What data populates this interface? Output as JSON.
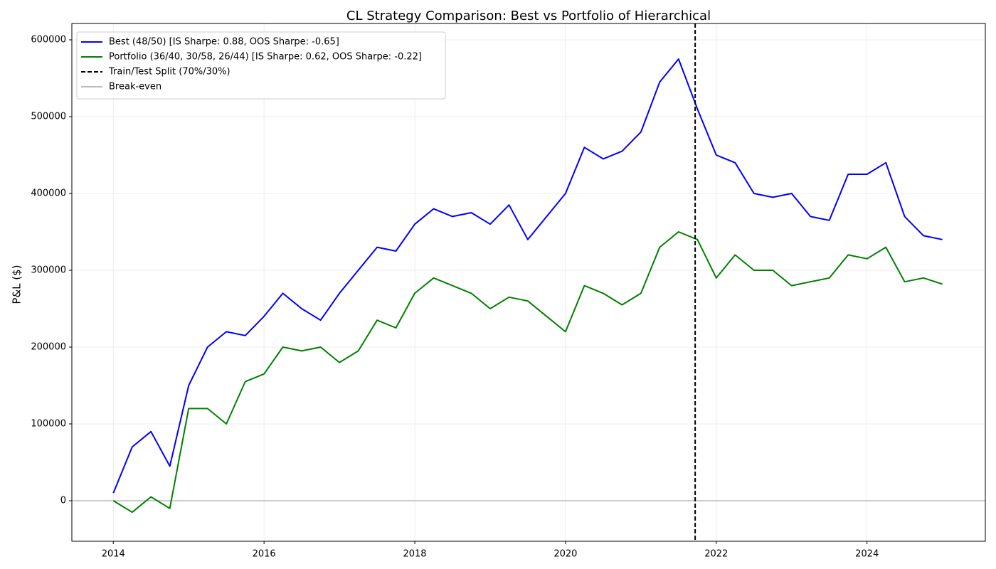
{
  "chart_data": {
    "type": "line",
    "title": "CL Strategy Comparison: Best vs Portfolio of Hierarchical",
    "y_label": "P&L ($)",
    "x": [
      2014.0,
      2014.25,
      2014.5,
      2014.75,
      2015.0,
      2015.25,
      2015.5,
      2015.75,
      2016.0,
      2016.25,
      2016.5,
      2016.75,
      2017.0,
      2017.25,
      2017.5,
      2017.75,
      2018.0,
      2018.25,
      2018.5,
      2018.75,
      2019.0,
      2019.25,
      2019.5,
      2019.75,
      2020.0,
      2020.25,
      2020.5,
      2020.75,
      2021.0,
      2021.25,
      2021.5,
      2021.75,
      2022.0,
      2022.25,
      2022.5,
      2022.75,
      2023.0,
      2023.25,
      2023.5,
      2023.75,
      2024.0,
      2024.25,
      2024.5,
      2024.75,
      2025.0
    ],
    "series": [
      {
        "name": "Best (48/50) [IS Sharpe: 0.88, OOS Sharpe: -0.65]",
        "color": "#0000ff",
        "values": [
          10000,
          70000,
          90000,
          45000,
          150000,
          200000,
          220000,
          215000,
          240000,
          270000,
          250000,
          235000,
          270000,
          300000,
          330000,
          325000,
          360000,
          380000,
          370000,
          375000,
          360000,
          385000,
          340000,
          370000,
          400000,
          460000,
          445000,
          455000,
          480000,
          545000,
          575000,
          510000,
          450000,
          440000,
          400000,
          395000,
          400000,
          370000,
          365000,
          425000,
          425000,
          440000,
          370000,
          345000,
          340000
        ]
      },
      {
        "name": "Portfolio (36/40, 30/58, 26/44) [IS Sharpe: 0.62, OOS Sharpe: -0.22]",
        "color": "#008000",
        "values": [
          0,
          -15000,
          5000,
          -10000,
          120000,
          120000,
          100000,
          155000,
          165000,
          200000,
          195000,
          200000,
          180000,
          195000,
          235000,
          225000,
          270000,
          290000,
          280000,
          270000,
          250000,
          265000,
          260000,
          240000,
          220000,
          280000,
          270000,
          255000,
          270000,
          330000,
          350000,
          340000,
          290000,
          320000,
          300000,
          300000,
          280000,
          285000,
          290000,
          320000,
          315000,
          330000,
          285000,
          290000,
          282000
        ]
      }
    ],
    "vlines": [
      {
        "name": "Train/Test Split (70%/30%)",
        "x": 2021.72,
        "color": "#000000"
      }
    ],
    "hlines": [
      {
        "name": "Break-even",
        "y": 0,
        "color": "#bbbbbb"
      }
    ],
    "xlim": [
      2013.45,
      2025.57
    ],
    "ylim": [
      -52800,
      621300
    ],
    "xticks": [
      2014,
      2016,
      2018,
      2020,
      2022,
      2024
    ],
    "yticks": [
      0,
      100000,
      200000,
      300000,
      400000,
      500000,
      600000
    ],
    "grid": true,
    "legend": "upper-left"
  }
}
